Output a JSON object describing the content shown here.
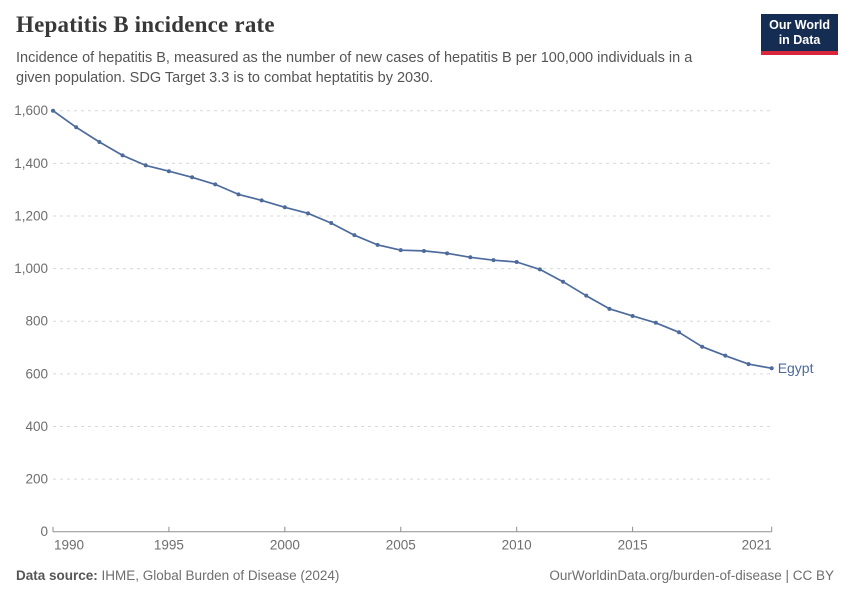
{
  "header": {
    "title": "Hepatitis B incidence rate",
    "subtitle": "Incidence of hepatitis B, measured as the number of new cases of hepatitis B per 100,000 individuals in a given population. SDG Target 3.3 is to combat heptatitis by 2030.",
    "logo": {
      "line1": "Our World",
      "line2": "in Data",
      "bg_color": "#152d52",
      "stripe_color": "#d8273c"
    }
  },
  "chart_data": {
    "type": "line",
    "title": "Hepatitis B incidence rate",
    "xlabel": "",
    "ylabel": "",
    "x": [
      1990,
      1991,
      1992,
      1993,
      1994,
      1995,
      1996,
      1997,
      1998,
      1999,
      2000,
      2001,
      2002,
      2003,
      2004,
      2005,
      2006,
      2007,
      2008,
      2009,
      2010,
      2011,
      2012,
      2013,
      2014,
      2015,
      2016,
      2017,
      2018,
      2019,
      2020,
      2021
    ],
    "series": [
      {
        "name": "Egypt",
        "color": "#4C6A9C",
        "values": [
          1600,
          1537,
          1481,
          1430,
          1392,
          1370,
          1347,
          1320,
          1282,
          1259,
          1233,
          1210,
          1173,
          1127,
          1090,
          1070,
          1067,
          1058,
          1043,
          1032,
          1025,
          997,
          950,
          897,
          847,
          820,
          794,
          758,
          703,
          669,
          637,
          621
        ]
      }
    ],
    "ylim": [
      0,
      1600
    ],
    "yticks": [
      {
        "value": 0,
        "label": "0"
      },
      {
        "value": 200,
        "label": "200"
      },
      {
        "value": 400,
        "label": "400"
      },
      {
        "value": 600,
        "label": "600"
      },
      {
        "value": 800,
        "label": "800"
      },
      {
        "value": 1000,
        "label": "1,000"
      },
      {
        "value": 1200,
        "label": "1,200"
      },
      {
        "value": 1400,
        "label": "1,400"
      },
      {
        "value": 1600,
        "label": "1,600"
      }
    ],
    "xticks": [
      {
        "value": 1990,
        "label": "1990"
      },
      {
        "value": 1995,
        "label": "1995"
      },
      {
        "value": 2000,
        "label": "2000"
      },
      {
        "value": 2005,
        "label": "2005"
      },
      {
        "value": 2010,
        "label": "2010"
      },
      {
        "value": 2015,
        "label": "2015"
      },
      {
        "value": 2021,
        "label": "2021"
      }
    ],
    "grid": "horizontal-dashed",
    "grid_color": "#d9d9d9",
    "axis_color": "#8f8f8f",
    "tick_label_color": "#6e6e6e",
    "legend_position": "end-of-line"
  },
  "footer": {
    "source_label": "Data source:",
    "source_value": " IHME, Global Burden of Disease (2024)",
    "credit": "OurWorldinData.org/burden-of-disease | CC BY"
  }
}
